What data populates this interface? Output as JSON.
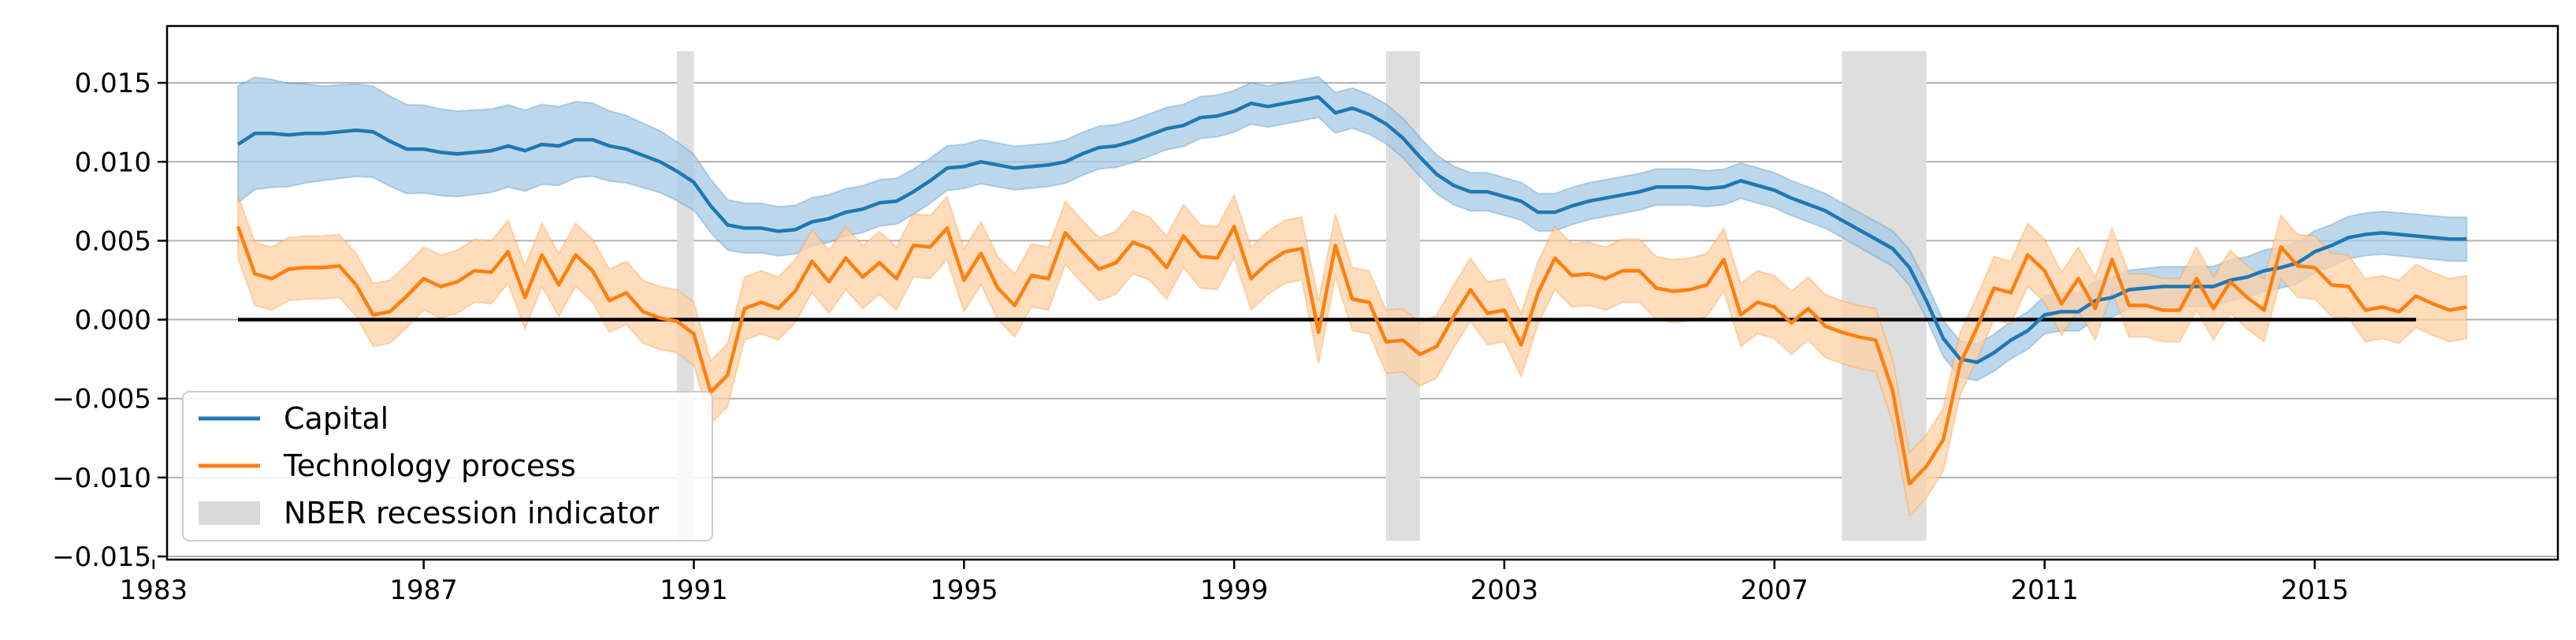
{
  "chart_data": {
    "type": "line",
    "title": "",
    "xlabel": "",
    "ylabel": "",
    "xlim": [
      1983.2,
      2018.6
    ],
    "ylim": [
      -0.0152,
      0.0186
    ],
    "grid": "horizontal",
    "legend_position": "lower-left",
    "x_ticks": [
      "1983",
      "1987",
      "1991",
      "1995",
      "1999",
      "2003",
      "2007",
      "2011",
      "2015"
    ],
    "y_ticks": [
      "0.015",
      "0.010",
      "0.005",
      "0.000",
      "−0.005",
      "−0.010",
      "−0.015"
    ],
    "recessions": [
      {
        "start": 1990.75,
        "end": 1991.0
      },
      {
        "start": 2001.25,
        "end": 2001.75
      },
      {
        "start": 2008.0,
        "end": 2009.25
      }
    ],
    "recession_ylim": [
      -0.014,
      0.017
    ],
    "zero_line": {
      "from": 1984.25,
      "to": 2016.5,
      "y": 0
    },
    "series": [
      {
        "name": "Capital",
        "color": "#1f77b4",
        "band_color": "#a6c8e4",
        "points": [
          [
            1984.25,
            0.0111
          ],
          [
            1984.5,
            0.0118
          ],
          [
            1984.75,
            0.0118
          ],
          [
            1985,
            0.0117
          ],
          [
            1985.25,
            0.0118
          ],
          [
            1985.5,
            0.0118
          ],
          [
            1985.75,
            0.0119
          ],
          [
            1986,
            0.012
          ],
          [
            1986.25,
            0.0119
          ],
          [
            1986.5,
            0.0113
          ],
          [
            1986.75,
            0.0108
          ],
          [
            1987,
            0.0108
          ],
          [
            1987.25,
            0.0106
          ],
          [
            1987.5,
            0.0105
          ],
          [
            1987.75,
            0.0106
          ],
          [
            1988,
            0.0107
          ],
          [
            1988.25,
            0.011
          ],
          [
            1988.5,
            0.0107
          ],
          [
            1988.75,
            0.0111
          ],
          [
            1989,
            0.011
          ],
          [
            1989.25,
            0.0114
          ],
          [
            1989.5,
            0.0114
          ],
          [
            1989.75,
            0.011
          ],
          [
            1990,
            0.0108
          ],
          [
            1990.25,
            0.0104
          ],
          [
            1990.5,
            0.01
          ],
          [
            1990.75,
            0.0094
          ],
          [
            1991,
            0.0087
          ],
          [
            1991.25,
            0.0072
          ],
          [
            1991.5,
            0.006
          ],
          [
            1991.75,
            0.0058
          ],
          [
            1992,
            0.0058
          ],
          [
            1992.25,
            0.0056
          ],
          [
            1992.5,
            0.0057
          ],
          [
            1992.75,
            0.0062
          ],
          [
            1993,
            0.0064
          ],
          [
            1993.25,
            0.0068
          ],
          [
            1993.5,
            0.007
          ],
          [
            1993.75,
            0.0074
          ],
          [
            1994,
            0.0075
          ],
          [
            1994.25,
            0.0081
          ],
          [
            1994.5,
            0.0088
          ],
          [
            1994.75,
            0.0096
          ],
          [
            1995,
            0.0097
          ],
          [
            1995.25,
            0.01
          ],
          [
            1995.5,
            0.0098
          ],
          [
            1995.75,
            0.0096
          ],
          [
            1996,
            0.0097
          ],
          [
            1996.25,
            0.0098
          ],
          [
            1996.5,
            0.01
          ],
          [
            1996.75,
            0.0105
          ],
          [
            1997,
            0.0109
          ],
          [
            1997.25,
            0.011
          ],
          [
            1997.5,
            0.0113
          ],
          [
            1997.75,
            0.0117
          ],
          [
            1998,
            0.0121
          ],
          [
            1998.25,
            0.0123
          ],
          [
            1998.5,
            0.0128
          ],
          [
            1998.75,
            0.0129
          ],
          [
            1999,
            0.0132
          ],
          [
            1999.25,
            0.0137
          ],
          [
            1999.5,
            0.0135
          ],
          [
            1999.75,
            0.0137
          ],
          [
            2000,
            0.0139
          ],
          [
            2000.25,
            0.0141
          ],
          [
            2000.5,
            0.0131
          ],
          [
            2000.75,
            0.0134
          ],
          [
            2001,
            0.013
          ],
          [
            2001.25,
            0.0124
          ],
          [
            2001.5,
            0.0115
          ],
          [
            2001.75,
            0.0103
          ],
          [
            2002,
            0.0092
          ],
          [
            2002.25,
            0.0085
          ],
          [
            2002.5,
            0.0081
          ],
          [
            2002.75,
            0.0081
          ],
          [
            2003,
            0.0078
          ],
          [
            2003.25,
            0.0075
          ],
          [
            2003.5,
            0.0068
          ],
          [
            2003.75,
            0.0068
          ],
          [
            2004,
            0.0072
          ],
          [
            2004.25,
            0.0075
          ],
          [
            2004.5,
            0.0077
          ],
          [
            2004.75,
            0.0079
          ],
          [
            2005,
            0.0081
          ],
          [
            2005.25,
            0.0084
          ],
          [
            2005.5,
            0.0084
          ],
          [
            2005.75,
            0.0084
          ],
          [
            2006,
            0.0083
          ],
          [
            2006.25,
            0.0084
          ],
          [
            2006.5,
            0.0088
          ],
          [
            2006.75,
            0.0085
          ],
          [
            2007,
            0.0082
          ],
          [
            2007.25,
            0.0077
          ],
          [
            2007.5,
            0.0073
          ],
          [
            2007.75,
            0.0069
          ],
          [
            2008,
            0.0063
          ],
          [
            2008.25,
            0.0057
          ],
          [
            2008.5,
            0.0051
          ],
          [
            2008.75,
            0.0045
          ],
          [
            2009,
            0.0033
          ],
          [
            2009.25,
            0.0012
          ],
          [
            2009.5,
            -0.0012
          ],
          [
            2009.75,
            -0.0025
          ],
          [
            2010,
            -0.0027
          ],
          [
            2010.25,
            -0.0021
          ],
          [
            2010.5,
            -0.0013
          ],
          [
            2010.75,
            -0.0007
          ],
          [
            2011,
            0.0003
          ],
          [
            2011.25,
            0.0005
          ],
          [
            2011.5,
            0.0005
          ],
          [
            2011.75,
            0.0012
          ],
          [
            2012,
            0.0014
          ],
          [
            2012.25,
            0.0019
          ],
          [
            2012.5,
            0.002
          ],
          [
            2012.75,
            0.0021
          ],
          [
            2013,
            0.0021
          ],
          [
            2013.25,
            0.0021
          ],
          [
            2013.5,
            0.0021
          ],
          [
            2013.75,
            0.0025
          ],
          [
            2014,
            0.0027
          ],
          [
            2014.25,
            0.0031
          ],
          [
            2014.5,
            0.0033
          ],
          [
            2014.75,
            0.0036
          ],
          [
            2015,
            0.0043
          ],
          [
            2015.25,
            0.0047
          ],
          [
            2015.5,
            0.0052
          ],
          [
            2015.75,
            0.0054
          ],
          [
            2016,
            0.0055
          ],
          [
            2016.25,
            0.0054
          ],
          [
            2016.5,
            0.0053
          ],
          [
            2016.75,
            0.0052
          ],
          [
            2017,
            0.0051
          ],
          [
            2017.25,
            0.0051
          ]
        ],
        "band_halfwidth": [
          [
            1984.25,
            0.0037
          ],
          [
            1985.5,
            0.003
          ],
          [
            1989,
            0.0025
          ],
          [
            1991.5,
            0.0016
          ],
          [
            1995,
            0.0014
          ],
          [
            2000,
            0.0013
          ],
          [
            2003,
            0.0012
          ],
          [
            2008,
            0.0011
          ],
          [
            2011,
            0.0012
          ],
          [
            2017.25,
            0.0014
          ]
        ]
      },
      {
        "name": "Technology process",
        "color": "#ff7f0e",
        "band_color": "#fdd0a5",
        "points": [
          [
            1984.25,
            0.0059
          ],
          [
            1984.5,
            0.0029
          ],
          [
            1984.75,
            0.0026
          ],
          [
            1985,
            0.0032
          ],
          [
            1985.25,
            0.0033
          ],
          [
            1985.5,
            0.0033
          ],
          [
            1985.75,
            0.0034
          ],
          [
            1986,
            0.0022
          ],
          [
            1986.25,
            0.0003
          ],
          [
            1986.5,
            0.0005
          ],
          [
            1986.75,
            0.0015
          ],
          [
            1987,
            0.0026
          ],
          [
            1987.25,
            0.0021
          ],
          [
            1987.5,
            0.0024
          ],
          [
            1987.75,
            0.0031
          ],
          [
            1988,
            0.003
          ],
          [
            1988.25,
            0.0043
          ],
          [
            1988.5,
            0.0014
          ],
          [
            1988.75,
            0.0041
          ],
          [
            1989,
            0.0022
          ],
          [
            1989.25,
            0.0041
          ],
          [
            1989.5,
            0.0031
          ],
          [
            1989.75,
            0.0012
          ],
          [
            1990,
            0.0017
          ],
          [
            1990.25,
            0.0005
          ],
          [
            1990.5,
            0.0001
          ],
          [
            1990.75,
            -0.0001
          ],
          [
            1991,
            -0.0009
          ],
          [
            1991.25,
            -0.0046
          ],
          [
            1991.5,
            -0.0035
          ],
          [
            1991.75,
            0.0007
          ],
          [
            1992,
            0.0011
          ],
          [
            1992.25,
            0.0007
          ],
          [
            1992.5,
            0.0018
          ],
          [
            1992.75,
            0.0037
          ],
          [
            1993,
            0.0024
          ],
          [
            1993.25,
            0.0039
          ],
          [
            1993.5,
            0.0027
          ],
          [
            1993.75,
            0.0036
          ],
          [
            1994,
            0.0026
          ],
          [
            1994.25,
            0.0047
          ],
          [
            1994.5,
            0.0046
          ],
          [
            1994.75,
            0.0058
          ],
          [
            1995,
            0.0025
          ],
          [
            1995.25,
            0.0042
          ],
          [
            1995.5,
            0.002
          ],
          [
            1995.75,
            0.0009
          ],
          [
            1996,
            0.0028
          ],
          [
            1996.25,
            0.0026
          ],
          [
            1996.5,
            0.0055
          ],
          [
            1996.75,
            0.0043
          ],
          [
            1997,
            0.0032
          ],
          [
            1997.25,
            0.0036
          ],
          [
            1997.5,
            0.0049
          ],
          [
            1997.75,
            0.0045
          ],
          [
            1998,
            0.0033
          ],
          [
            1998.25,
            0.0053
          ],
          [
            1998.5,
            0.004
          ],
          [
            1998.75,
            0.0039
          ],
          [
            1999,
            0.0059
          ],
          [
            1999.25,
            0.0026
          ],
          [
            1999.5,
            0.0036
          ],
          [
            1999.75,
            0.0043
          ],
          [
            2000,
            0.0045
          ],
          [
            2000.25,
            -0.0008
          ],
          [
            2000.5,
            0.0047
          ],
          [
            2000.75,
            0.0013
          ],
          [
            2001,
            0.0011
          ],
          [
            2001.25,
            -0.0014
          ],
          [
            2001.5,
            -0.0013
          ],
          [
            2001.75,
            -0.0022
          ],
          [
            2002,
            -0.0017
          ],
          [
            2002.25,
            0.0002
          ],
          [
            2002.5,
            0.0019
          ],
          [
            2002.75,
            0.0004
          ],
          [
            2003,
            0.0006
          ],
          [
            2003.25,
            -0.0016
          ],
          [
            2003.5,
            0.0017
          ],
          [
            2003.75,
            0.0039
          ],
          [
            2004,
            0.0028
          ],
          [
            2004.25,
            0.0029
          ],
          [
            2004.5,
            0.0026
          ],
          [
            2004.75,
            0.0031
          ],
          [
            2005,
            0.0031
          ],
          [
            2005.25,
            0.002
          ],
          [
            2005.5,
            0.0018
          ],
          [
            2005.75,
            0.0019
          ],
          [
            2006,
            0.0022
          ],
          [
            2006.25,
            0.0038
          ],
          [
            2006.5,
            0.0003
          ],
          [
            2006.75,
            0.0011
          ],
          [
            2007,
            0.0008
          ],
          [
            2007.25,
            -0.0002
          ],
          [
            2007.5,
            0.0007
          ],
          [
            2007.75,
            -0.0004
          ],
          [
            2008,
            -0.0008
          ],
          [
            2008.25,
            -0.0011
          ],
          [
            2008.5,
            -0.0013
          ],
          [
            2008.75,
            -0.0045
          ],
          [
            2009,
            -0.0104
          ],
          [
            2009.25,
            -0.0093
          ],
          [
            2009.5,
            -0.0076
          ],
          [
            2009.75,
            -0.0028
          ],
          [
            2010,
            -0.0005
          ],
          [
            2010.25,
            0.002
          ],
          [
            2010.5,
            0.0017
          ],
          [
            2010.75,
            0.0041
          ],
          [
            2011,
            0.0031
          ],
          [
            2011.25,
            0.001
          ],
          [
            2011.5,
            0.0026
          ],
          [
            2011.75,
            0.0007
          ],
          [
            2012,
            0.0038
          ],
          [
            2012.25,
            0.0009
          ],
          [
            2012.5,
            0.0009
          ],
          [
            2012.75,
            0.0006
          ],
          [
            2013,
            0.0006
          ],
          [
            2013.25,
            0.0026
          ],
          [
            2013.5,
            0.0007
          ],
          [
            2013.75,
            0.0024
          ],
          [
            2014,
            0.0014
          ],
          [
            2014.25,
            0.0006
          ],
          [
            2014.5,
            0.0046
          ],
          [
            2014.75,
            0.0034
          ],
          [
            2015,
            0.0033
          ],
          [
            2015.25,
            0.0022
          ],
          [
            2015.5,
            0.0021
          ],
          [
            2015.75,
            0.0006
          ],
          [
            2016,
            0.0008
          ],
          [
            2016.25,
            0.0005
          ],
          [
            2016.5,
            0.0015
          ],
          [
            2016.75,
            0.001
          ],
          [
            2017,
            0.0006
          ],
          [
            2017.25,
            0.0008
          ]
        ],
        "band_halfwidth": [
          [
            1984.25,
            0.002
          ],
          [
            2017.25,
            0.002
          ]
        ]
      }
    ]
  },
  "legend": {
    "items": [
      {
        "label": "Capital",
        "color": "#1f77b4",
        "kind": "line"
      },
      {
        "label": "Technology process",
        "color": "#ff7f0e",
        "kind": "line"
      },
      {
        "label": "NBER recession indicator",
        "color": "#d9d9d9",
        "kind": "patch"
      }
    ]
  },
  "colors": {
    "axis": "#000000",
    "grid": "#b0b0b0",
    "recession": "#dedede",
    "zero_line": "#000000"
  }
}
